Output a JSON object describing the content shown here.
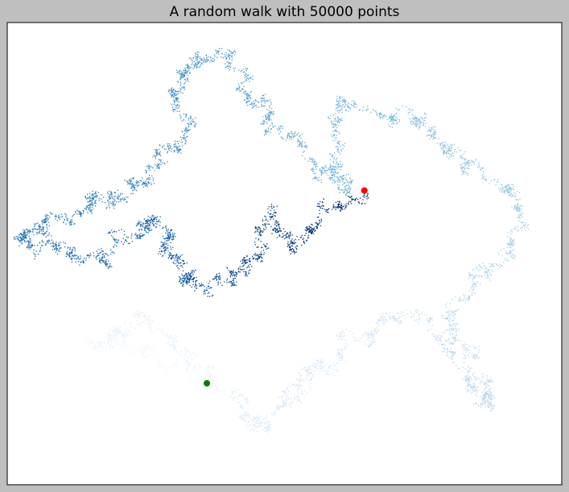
{
  "chart_data": {
    "type": "scatter",
    "title": "A random walk with 50000 points",
    "num_points": 50000,
    "colormap": "Blues",
    "axes_visible": false,
    "grid": false,
    "background_color": "#bfbfbf",
    "plot_background": "#ffffff",
    "start_point": {
      "x": 0,
      "y": 0,
      "color": "#008000"
    },
    "end_point": {
      "x": 142,
      "y": 171,
      "color": "#ff0000"
    },
    "xlim": [
      -180,
      320
    ],
    "ylim": [
      -90,
      320
    ]
  }
}
